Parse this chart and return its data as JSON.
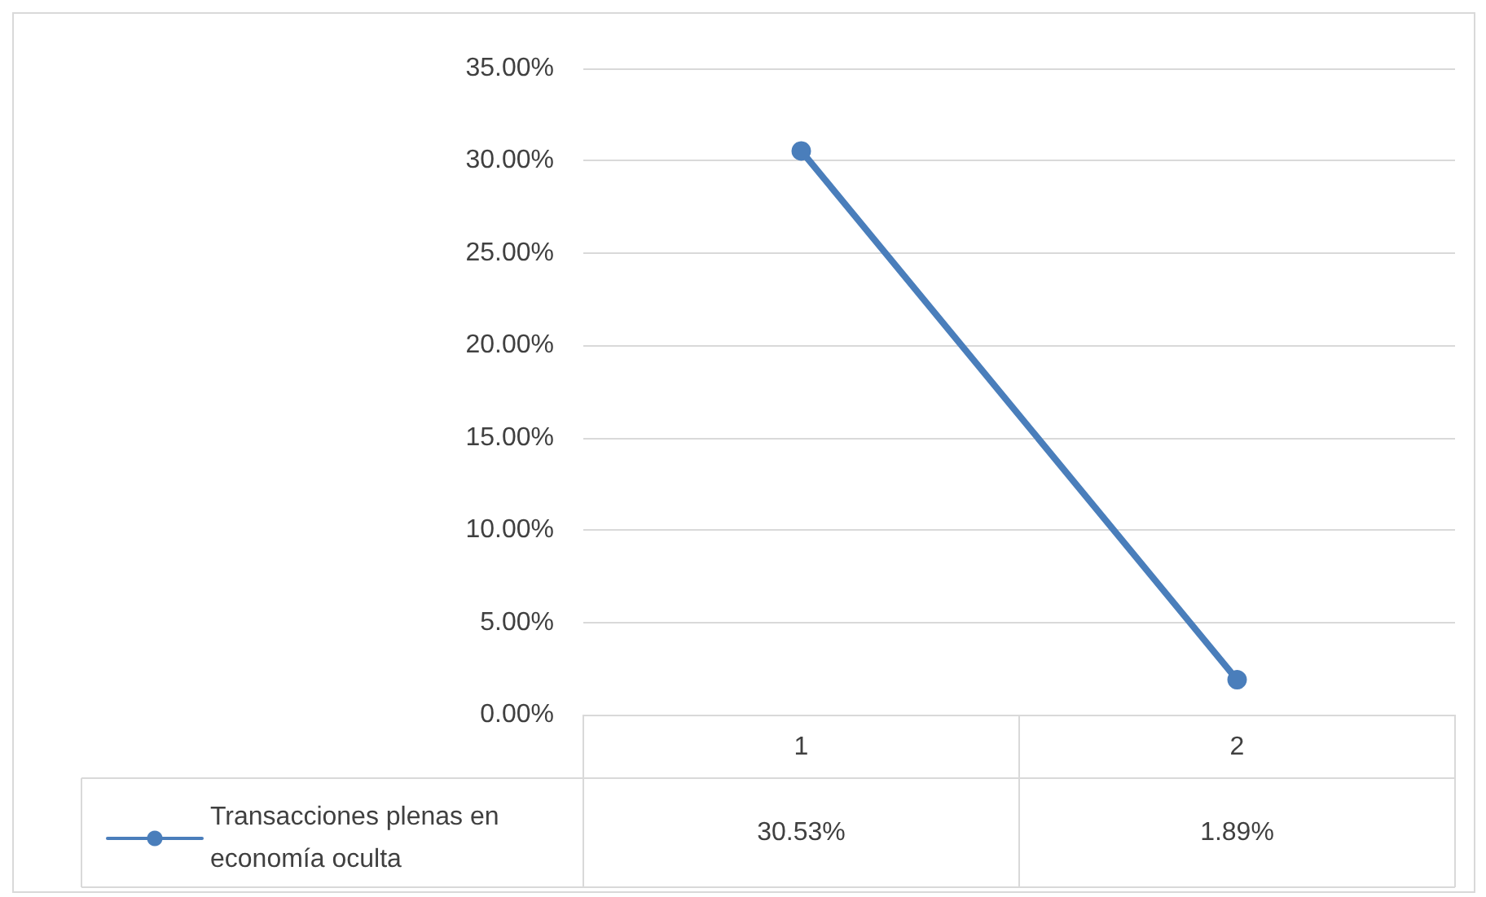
{
  "chart_data": {
    "type": "line",
    "categories": [
      "1",
      "2"
    ],
    "series": [
      {
        "name": "Transacciones plenas en economía oculta",
        "color": "#4a7ebb",
        "values": [
          30.53,
          1.89
        ],
        "value_labels": [
          "30.53%",
          "1.89%"
        ]
      }
    ],
    "ylim": [
      0,
      35
    ],
    "yticks": [
      {
        "value": 0,
        "label": "0.00%"
      },
      {
        "value": 5,
        "label": "5.00%"
      },
      {
        "value": 10,
        "label": "10.00%"
      },
      {
        "value": 15,
        "label": "15.00%"
      },
      {
        "value": 20,
        "label": "20.00%"
      },
      {
        "value": 25,
        "label": "25.00%"
      },
      {
        "value": 30,
        "label": "30.00%"
      },
      {
        "value": 35,
        "label": "35.00%"
      }
    ],
    "grid": "y",
    "legend": "bottom left",
    "marker": "circle",
    "line_style": "solid"
  }
}
